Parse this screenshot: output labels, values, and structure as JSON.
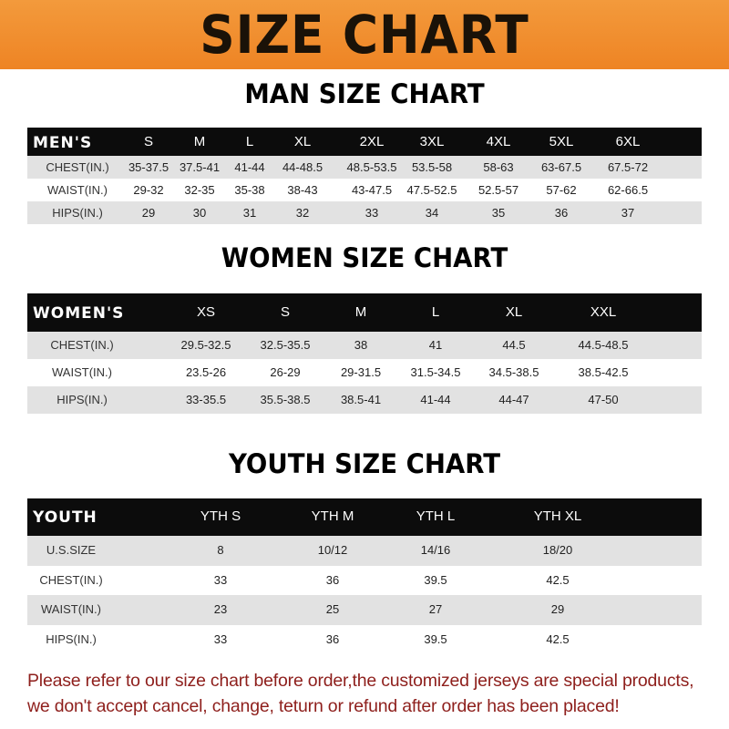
{
  "banner": {
    "title": "SIZE CHART"
  },
  "men": {
    "title": "MAN SIZE CHART",
    "header": [
      "MEN'S",
      "S",
      "M",
      "L",
      "XL",
      "2XL",
      "3XL",
      "4XL",
      "5XL",
      "6XL"
    ],
    "rows": [
      [
        "CHEST(IN.)",
        "35-37.5",
        "37.5-41",
        "41-44",
        "44-48.5",
        "48.5-53.5",
        "53.5-58",
        "58-63",
        "63-67.5",
        "67.5-72"
      ],
      [
        "WAIST(IN.)",
        "29-32",
        "32-35",
        "35-38",
        "38-43",
        "43-47.5",
        "47.5-52.5",
        "52.5-57",
        "57-62",
        "62-66.5"
      ],
      [
        "HIPS(IN.)",
        "29",
        "30",
        "31",
        "32",
        "33",
        "34",
        "35",
        "36",
        "37"
      ]
    ]
  },
  "women": {
    "title": "WOMEN SIZE CHART",
    "header": [
      "WOMEN'S",
      "XS",
      "S",
      "M",
      "L",
      "XL",
      "XXL"
    ],
    "rows": [
      [
        "CHEST(IN.)",
        "29.5-32.5",
        "32.5-35.5",
        "38",
        "41",
        "44.5",
        "44.5-48.5"
      ],
      [
        "WAIST(IN.)",
        "23.5-26",
        "26-29",
        "29-31.5",
        "31.5-34.5",
        "34.5-38.5",
        "38.5-42.5"
      ],
      [
        "HIPS(IN.)",
        "33-35.5",
        "35.5-38.5",
        "38.5-41",
        "41-44",
        "44-47",
        "47-50"
      ]
    ]
  },
  "youth": {
    "title": "YOUTH SIZE CHART",
    "header": [
      "YOUTH",
      "YTH S",
      "YTH M",
      "YTH L",
      "YTH XL"
    ],
    "rows": [
      [
        "U.S.SIZE",
        "8",
        "10/12",
        "14/16",
        "18/20"
      ],
      [
        "CHEST(IN.)",
        "33",
        "36",
        "39.5",
        "42.5"
      ],
      [
        "WAIST(IN.)",
        "23",
        "25",
        "27",
        "29"
      ],
      [
        "HIPS(IN.)",
        "33",
        "36",
        "39.5",
        "42.5"
      ]
    ]
  },
  "note": {
    "line1": "Please refer to our size chart before order,the customized jerseys are special products,",
    "line2": "we don't accept cancel, change, teturn or refund after order has been placed!"
  },
  "colors": {
    "banner": "#f08a2a",
    "header_row": "#0c0c0c",
    "stripe": "#e2e2e2",
    "note": "#8e1f1c"
  }
}
